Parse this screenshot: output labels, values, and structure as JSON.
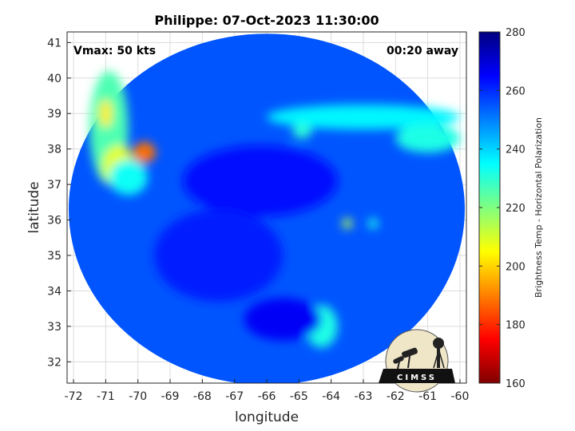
{
  "chart_data": {
    "type": "heatmap",
    "title": "Philippe: 07-Oct-2023 11:30:00",
    "xlabel": "longitude",
    "ylabel": "latitude",
    "xlim": [
      -72.2,
      -59.8
    ],
    "ylim": [
      31.4,
      41.3
    ],
    "xticks": [
      -72,
      -71,
      -70,
      -69,
      -68,
      -67,
      -66,
      -65,
      -64,
      -63,
      -62,
      -61,
      -60
    ],
    "yticks": [
      32,
      33,
      34,
      35,
      36,
      37,
      38,
      39,
      40,
      41
    ],
    "grid": true,
    "annotations": {
      "left": "Vmax: 50 kts",
      "right": "00:20 away"
    },
    "colorbar": {
      "label": "Brightness Temp - Horizontal Polarization",
      "range": [
        160,
        280
      ],
      "ticks": [
        280,
        260,
        240,
        220,
        200,
        180,
        160
      ],
      "colormap": "jet"
    },
    "swath": {
      "center": [
        -66.0,
        36.3
      ],
      "radius_lon": 6.15,
      "radius_lat": 4.95,
      "background_tb": 255
    },
    "features": [
      {
        "lon": -70.9,
        "lat": 38.6,
        "rlon": 0.6,
        "rlat": 1.6,
        "tb": 226
      },
      {
        "lon": -70.6,
        "lat": 37.5,
        "rlon": 0.5,
        "rlat": 0.6,
        "tb": 208
      },
      {
        "lon": -69.8,
        "lat": 37.9,
        "rlon": 0.35,
        "rlat": 0.3,
        "tb": 188
      },
      {
        "lon": -71.0,
        "lat": 39.0,
        "rlon": 0.2,
        "rlat": 0.4,
        "tb": 203
      },
      {
        "lon": -70.3,
        "lat": 37.2,
        "rlon": 0.6,
        "rlat": 0.5,
        "tb": 234
      },
      {
        "lon": -63.0,
        "lat": 38.9,
        "rlon": 3.0,
        "rlat": 0.35,
        "tb": 236
      },
      {
        "lon": -61.0,
        "lat": 38.3,
        "rlon": 1.0,
        "rlat": 0.4,
        "tb": 232
      },
      {
        "lon": -63.5,
        "lat": 35.9,
        "rlon": 0.15,
        "rlat": 0.15,
        "tb": 214
      },
      {
        "lon": -64.3,
        "lat": 33.0,
        "rlon": 0.5,
        "rlat": 0.6,
        "tb": 232
      },
      {
        "lon": -62.7,
        "lat": 35.9,
        "rlon": 0.15,
        "rlat": 0.15,
        "tb": 232
      },
      {
        "lon": -64.9,
        "lat": 38.5,
        "rlon": 0.3,
        "rlat": 0.2,
        "tb": 230
      },
      {
        "lon": -66.2,
        "lat": 37.1,
        "rlon": 2.4,
        "rlat": 1.0,
        "tb": 264
      },
      {
        "lon": -67.5,
        "lat": 35.0,
        "rlon": 2.0,
        "rlat": 1.3,
        "tb": 262
      },
      {
        "lon": -65.5,
        "lat": 33.2,
        "rlon": 1.2,
        "rlat": 0.6,
        "tb": 266
      }
    ],
    "logo_text": "CIMSS"
  }
}
